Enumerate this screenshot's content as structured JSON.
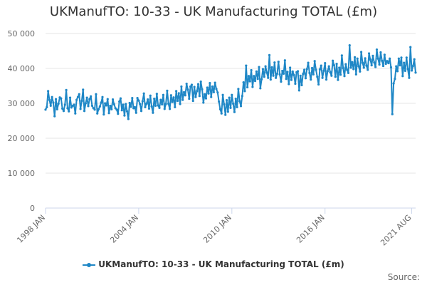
{
  "title": "UKManufTO: 10-33 - UK Manufacturing TOTAL (£m)",
  "credits": "Source:",
  "colors": {
    "series": "#1f87c6",
    "grid": "#e6e6e6",
    "axis": "#666666",
    "text": "#333333"
  },
  "chart_data": {
    "type": "line",
    "title": "UKManufTO: 10-33 - UK Manufacturing TOTAL (£m)",
    "xlabel": "",
    "ylabel": "",
    "ylim": [
      0,
      50000
    ],
    "yticks": [
      0,
      10000,
      20000,
      30000,
      40000,
      50000
    ],
    "ytick_labels": [
      "0",
      "10 000",
      "20 000",
      "30 000",
      "40 000",
      "50 000"
    ],
    "xticks": [
      {
        "label": "1998 JAN",
        "index": 0
      },
      {
        "label": "2004 JAN",
        "index": 72
      },
      {
        "label": "2010 JAN",
        "index": 144
      },
      {
        "label": "2016 JAN",
        "index": 216
      },
      {
        "label": "2021 AUG",
        "index": 283
      }
    ],
    "x_start": "1998 JAN",
    "x_end": "2021 AUG",
    "grid": true,
    "legend_position": "bottom-center",
    "series": [
      {
        "name": "UKManufTO: 10-33 - UK Manufacturing TOTAL (£m)",
        "frequency": "monthly",
        "values": [
          28200,
          28900,
          33500,
          31000,
          29300,
          31800,
          30200,
          26300,
          31200,
          28300,
          29900,
          31700,
          31400,
          28500,
          27800,
          29600,
          33800,
          28600,
          27700,
          31600,
          28800,
          29300,
          29600,
          27100,
          31000,
          31800,
          32600,
          28400,
          30700,
          33900,
          27800,
          30000,
          31600,
          29200,
          31200,
          32000,
          29300,
          28600,
          28200,
          32600,
          27100,
          28300,
          29100,
          30200,
          31800,
          26800,
          30000,
          29400,
          31200,
          27200,
          29300,
          28300,
          31100,
          29700,
          28600,
          28200,
          27000,
          30500,
          31400,
          28000,
          29600,
          26500,
          29800,
          27700,
          25500,
          30100,
          29000,
          31500,
          28600,
          28900,
          27300,
          31500,
          30800,
          29800,
          27800,
          30600,
          32800,
          28900,
          29900,
          31100,
          28500,
          32200,
          29100,
          27300,
          31300,
          29300,
          32700,
          29400,
          28700,
          31000,
          29700,
          32400,
          28400,
          29800,
          33600,
          29900,
          28400,
          32300,
          30400,
          31700,
          28900,
          33500,
          30700,
          32900,
          29800,
          34800,
          31000,
          33200,
          32300,
          35600,
          33900,
          31300,
          34800,
          35300,
          30700,
          34700,
          31800,
          33500,
          35500,
          32100,
          36200,
          34000,
          30200,
          32600,
          31400,
          34500,
          32800,
          35800,
          31800,
          34800,
          33200,
          35900,
          34100,
          33100,
          30500,
          28300,
          27100,
          32400,
          29700,
          26700,
          30900,
          27600,
          31600,
          28700,
          32400,
          29900,
          27500,
          31300,
          28900,
          34100,
          30600,
          29200,
          32100,
          36000,
          33500,
          40800,
          34600,
          37800,
          36300,
          39500,
          34700,
          37800,
          36400,
          39100,
          37000,
          40400,
          34300,
          36900,
          39800,
          37600,
          40600,
          38800,
          37300,
          43800,
          36800,
          40300,
          37900,
          41700,
          37300,
          38500,
          41900,
          38300,
          36200,
          39300,
          38500,
          42300,
          37000,
          39000,
          35500,
          40200,
          36700,
          39100,
          38100,
          35600,
          38900,
          39200,
          33700,
          37900,
          35200,
          38400,
          39600,
          37200,
          39800,
          41600,
          38700,
          36800,
          40100,
          38300,
          42100,
          39600,
          37600,
          35400,
          39700,
          40800,
          37300,
          39300,
          41500,
          36800,
          39200,
          40600,
          38900,
          37900,
          42200,
          40900,
          37600,
          41300,
          36700,
          40200,
          38200,
          43700,
          40100,
          37800,
          41200,
          39600,
          38700,
          46600,
          40200,
          41800,
          39800,
          43200,
          38300,
          42800,
          40600,
          39100,
          44700,
          41600,
          40200,
          42900,
          40800,
          39600,
          44300,
          42500,
          40900,
          43600,
          41700,
          40400,
          45400,
          42800,
          41100,
          44600,
          42200,
          40700,
          43900,
          41300,
          42100,
          41500,
          42800,
          40300,
          26900,
          35700,
          37000,
          40600,
          39200,
          42800,
          40900,
          43100,
          37800,
          41600,
          39300,
          43100,
          39800,
          37300,
          46100,
          39400,
          40700,
          42600,
          38800
        ]
      }
    ]
  }
}
